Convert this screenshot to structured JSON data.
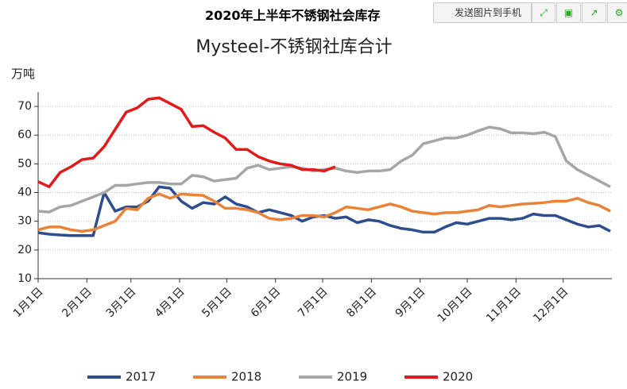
{
  "header": {
    "title": "2020年上半年不锈钢社会库存",
    "button": "发送图片到手机"
  },
  "chart_data": {
    "type": "line",
    "title": "Mysteel-不锈钢社库合计",
    "ylabel": "万吨",
    "x": [
      0,
      7,
      14,
      21,
      28,
      35,
      42,
      49,
      56,
      63,
      70,
      77,
      84,
      91,
      98,
      105,
      112,
      119,
      126,
      133,
      140,
      147,
      154,
      161,
      168,
      175,
      182,
      189,
      196,
      203,
      210,
      217,
      224,
      231,
      238,
      245,
      252,
      259,
      266,
      273,
      280,
      287,
      294,
      301,
      308,
      315,
      322,
      329,
      336,
      343,
      350,
      357,
      364
    ],
    "xlim": [
      0,
      365
    ],
    "xticks": [
      {
        "value": 0,
        "label": "1月1日"
      },
      {
        "value": 31,
        "label": "2月1日"
      },
      {
        "value": 59,
        "label": "3月1日"
      },
      {
        "value": 90,
        "label": "4月1日"
      },
      {
        "value": 120,
        "label": "5月1日"
      },
      {
        "value": 151,
        "label": "6月1日"
      },
      {
        "value": 181,
        "label": "7月1日"
      },
      {
        "value": 212,
        "label": "8月1日"
      },
      {
        "value": 243,
        "label": "9月1日"
      },
      {
        "value": 273,
        "label": "10月1日"
      },
      {
        "value": 304,
        "label": "11月1日"
      },
      {
        "value": 334,
        "label": "12月1日"
      }
    ],
    "ylim": [
      10,
      75
    ],
    "yticks": [
      10,
      20,
      30,
      40,
      50,
      60,
      70
    ],
    "grid": true,
    "series": [
      {
        "name": "2017",
        "color": "#2e4d8c",
        "values": [
          26,
          25.5,
          25.2,
          25,
          25,
          25,
          40,
          33.5,
          35,
          35,
          37,
          42,
          41.5,
          37,
          34.5,
          36.5,
          36,
          38.5,
          36,
          35,
          33,
          34,
          33,
          32,
          30,
          31.5,
          32,
          31,
          31.5,
          29.5,
          30.5,
          30,
          28.5,
          27.5,
          27,
          26.2,
          26.2,
          28,
          29.5,
          29,
          30,
          31,
          31,
          30.5,
          31,
          32.5,
          32,
          32,
          30.5,
          29,
          28,
          28.5,
          26.5
        ]
      },
      {
        "name": "2018",
        "color": "#e8833a",
        "values": [
          27,
          28,
          28,
          27,
          26.5,
          27,
          28.5,
          30,
          34.5,
          34,
          38,
          39.5,
          38,
          39.5,
          39.2,
          39,
          37,
          34.5,
          34.5,
          34,
          33,
          31,
          30.5,
          31,
          32,
          32,
          31.5,
          33,
          35,
          34.5,
          34,
          35,
          36,
          35,
          33.5,
          33,
          32.5,
          33,
          33,
          33.5,
          34,
          35.5,
          35,
          35.5,
          36,
          36.2,
          36.5,
          37,
          37,
          38,
          36.5,
          35.5,
          33.5
        ]
      },
      {
        "name": "2019",
        "color": "#a6a6a6",
        "values": [
          33.5,
          33.2,
          35,
          35.5,
          37,
          38.5,
          40,
          42.5,
          42.5,
          43,
          43.5,
          43.5,
          43,
          43,
          46,
          45.5,
          44,
          44.5,
          45,
          48.5,
          49.5,
          48,
          48.5,
          49,
          48.5,
          47.5,
          48,
          48.5,
          47.5,
          47,
          47.5,
          47.5,
          48,
          51,
          53,
          57,
          58,
          59,
          59,
          60,
          61.5,
          62.8,
          62.2,
          60.8,
          60.8,
          60.5,
          61,
          59.5,
          51,
          48,
          46,
          44,
          42
        ]
      },
      {
        "name": "2020",
        "color": "#e01b1b",
        "values": [
          43.8,
          42,
          47,
          49,
          51.5,
          52,
          56,
          62,
          68,
          69.5,
          72.5,
          73,
          71,
          69,
          63,
          63.3,
          61,
          59,
          55,
          55,
          52.5,
          51,
          50,
          49.5,
          48,
          48,
          47.5,
          49,
          null,
          null,
          null,
          null,
          null,
          null,
          null,
          null,
          null,
          null,
          null,
          null,
          null,
          null,
          null,
          null,
          null,
          null,
          null,
          null,
          null,
          null,
          null,
          null,
          null
        ]
      }
    ]
  }
}
